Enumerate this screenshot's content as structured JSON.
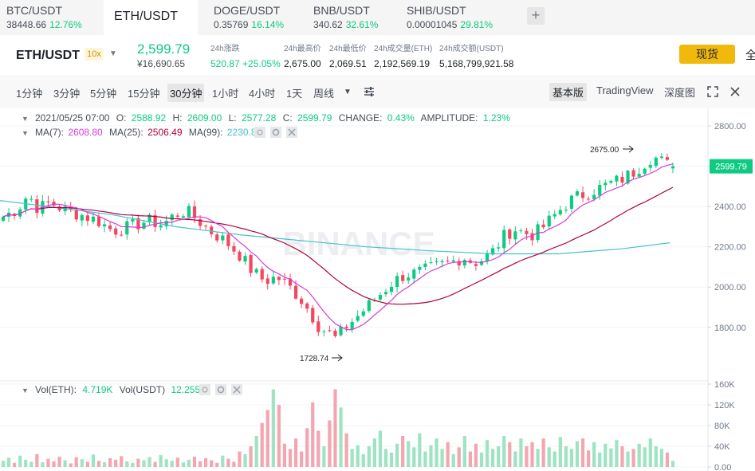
{
  "tabs": [
    {
      "pair": "BTC/USDT",
      "price": "38448.66",
      "change": "12.76%"
    },
    {
      "pair": "ETH/USDT",
      "price": "",
      "change": ""
    },
    {
      "pair": "DOGE/USDT",
      "price": "0.35769",
      "change": "16.14%"
    },
    {
      "pair": "BNB/USDT",
      "price": "340.62",
      "change": "32.61%"
    },
    {
      "pair": "SHIB/USDT",
      "price": "0.00001045",
      "change": "29.81%"
    }
  ],
  "add_tab": "+",
  "header": {
    "symbol": "ETH/USDT",
    "leverage": "10x",
    "caret": "▼",
    "price": "2,599.79",
    "price_cny": "¥16,690.65",
    "stats": [
      {
        "label": "24h涨跌",
        "value": "520.87 +25.05%"
      },
      {
        "label": "24h最高价",
        "value": "2,675.00"
      },
      {
        "label": "24h最低价",
        "value": "2,069.51"
      },
      {
        "label": "24h成交量(ETH)",
        "value": "2,192,569.19"
      },
      {
        "label": "24h成交额(USDT)",
        "value": "5,168,799,921.58"
      }
    ],
    "spot_label": "现货",
    "full_label": "全"
  },
  "toolbar": {
    "intervals": [
      "1分钟",
      "3分钟",
      "5分钟",
      "15分钟",
      "30分钟",
      "1小时",
      "4小时",
      "1天",
      "周线"
    ],
    "more": "▼",
    "settings_icon": "sliders-icon",
    "views": [
      "基本版",
      "TradingView",
      "深度图"
    ],
    "fullscreen_icon": "expand-icon",
    "close_icon": "close-icon"
  },
  "colors": {
    "up": "#0ecb81",
    "down": "#f6465d",
    "ma7": "#d23ed9",
    "ma25": "#b2003d",
    "ma99": "#45c3cc",
    "watermark": "#eceef1"
  },
  "chart_data": {
    "type": "candlestick",
    "ohlc_info": {
      "date": "2021/05/25 07:00",
      "o_label": "O:",
      "open": "2588.92",
      "h_label": "H:",
      "high": "2609.00",
      "l_label": "L:",
      "low": "2577.28",
      "c_label": "C:",
      "close": "2599.79",
      "change_label": "CHANGE:",
      "change": "0.43%",
      "amp_label": "AMPLITUDE:",
      "amplitude": "1.23%"
    },
    "ma_info": {
      "ma7_label": "MA(7):",
      "ma7": "2608.80",
      "ma25_label": "MA(25):",
      "ma25": "2506.49",
      "ma99_label": "MA(99):",
      "ma99": "2230.81"
    },
    "vol_info": {
      "eth_label": "Vol(ETH):",
      "eth": "4.719K",
      "usdt_label": "Vol(USDT)",
      "usdt": "12.255M"
    },
    "price_axis": {
      "ticks": [
        "2800.00",
        "2600.00",
        "2400.00",
        "2200.00",
        "2000.00",
        "1800.00"
      ],
      "current": "2599.79",
      "ylim": [
        1720,
        2820
      ]
    },
    "volume_axis": {
      "ticks": [
        "160K",
        "120K",
        "80K",
        "40K",
        "0.00"
      ],
      "ylim": [
        0,
        160
      ]
    },
    "annotations": {
      "high": "2675.00",
      "low": "1728.74"
    },
    "watermark": "BINANCE",
    "close_path": [
      [
        0,
        2350
      ],
      [
        12,
        2390
      ],
      [
        20,
        2460
      ],
      [
        28,
        2390
      ],
      [
        38,
        2420
      ],
      [
        50,
        2380
      ],
      [
        62,
        2360
      ],
      [
        76,
        2330
      ],
      [
        88,
        2280
      ],
      [
        102,
        2300
      ],
      [
        116,
        2330
      ],
      [
        128,
        2310
      ],
      [
        138,
        2360
      ],
      [
        147,
        2380
      ],
      [
        155,
        2340
      ],
      [
        166,
        2280
      ],
      [
        178,
        2230
      ],
      [
        190,
        2160
      ],
      [
        200,
        2080
      ],
      [
        210,
        2030
      ],
      [
        220,
        2050
      ],
      [
        230,
        2000
      ],
      [
        238,
        1950
      ],
      [
        246,
        1880
      ],
      [
        254,
        1800
      ],
      [
        262,
        1770
      ],
      [
        268,
        1740
      ],
      [
        274,
        1800
      ],
      [
        282,
        1840
      ],
      [
        292,
        1900
      ],
      [
        302,
        1960
      ],
      [
        312,
        2020
      ],
      [
        322,
        2060
      ],
      [
        332,
        2070
      ],
      [
        342,
        2090
      ],
      [
        352,
        2110
      ],
      [
        362,
        2130
      ],
      [
        370,
        2150
      ],
      [
        378,
        2120
      ],
      [
        386,
        2140
      ],
      [
        394,
        2180
      ],
      [
        402,
        2250
      ],
      [
        410,
        2290
      ],
      [
        418,
        2270
      ],
      [
        426,
        2260
      ],
      [
        434,
        2300
      ],
      [
        442,
        2350
      ],
      [
        450,
        2400
      ],
      [
        458,
        2440
      ],
      [
        466,
        2460
      ],
      [
        474,
        2480
      ],
      [
        482,
        2500
      ],
      [
        490,
        2520
      ],
      [
        498,
        2540
      ],
      [
        506,
        2570
      ],
      [
        514,
        2610
      ],
      [
        520,
        2640
      ],
      [
        526,
        2640
      ],
      [
        532,
        2610
      ],
      [
        538,
        2600
      ]
    ],
    "vol_pattern": [
      12,
      18,
      8,
      22,
      14,
      10,
      25,
      9,
      16,
      11,
      20,
      13,
      7,
      19,
      15,
      10,
      24,
      12,
      9,
      17,
      14,
      21,
      11,
      8,
      16,
      13,
      19,
      10,
      23,
      15,
      12,
      18,
      9,
      14,
      20,
      11,
      17,
      13,
      8,
      22,
      16,
      10,
      30,
      25,
      40,
      60,
      85,
      110,
      150,
      120,
      45,
      35,
      55,
      30,
      75,
      125,
      70,
      40,
      90,
      150,
      115,
      65,
      35,
      42,
      25,
      40,
      55,
      70,
      35,
      28,
      45,
      60,
      50,
      38,
      65,
      30,
      42,
      55,
      35,
      48,
      25,
      38,
      60,
      30,
      45,
      28,
      52,
      35,
      40,
      60,
      48,
      30,
      55,
      40,
      48,
      35,
      55,
      38,
      30,
      58,
      40,
      35,
      50,
      55,
      32,
      48,
      28,
      45,
      36,
      52,
      40,
      30,
      35,
      45,
      38,
      55,
      40,
      35,
      28
    ]
  }
}
